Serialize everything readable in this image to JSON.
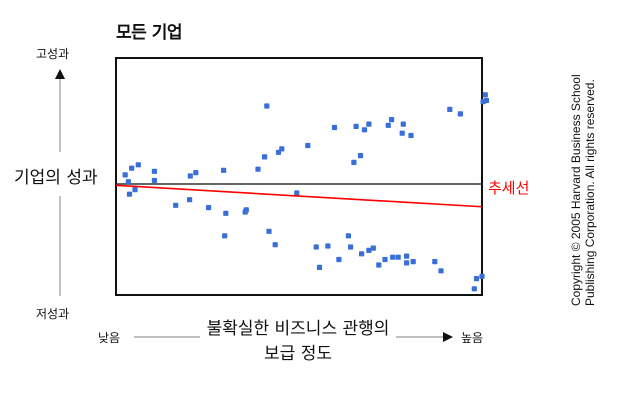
{
  "chart_data": {
    "type": "scatter",
    "title": "모든 기업",
    "ylabel": "기업의 성과",
    "y_high_label": "고성과",
    "y_low_label": "저성과",
    "xlabel": "불확실한 비즈니스 관행의 보급 정도",
    "x_low_label": "낮음",
    "x_high_label": "높음",
    "trend_label": "추세선",
    "xlim": [
      0,
      100
    ],
    "ylim": [
      0,
      100
    ],
    "baseline_y": 46.2,
    "trendline": [
      [
        0,
        45.6
      ],
      [
        100,
        35.5
      ]
    ],
    "points": [
      {
        "x": 2.5,
        "y": 50.5
      },
      {
        "x": 3.4,
        "y": 47.3
      },
      {
        "x": 3.7,
        "y": 41.4
      },
      {
        "x": 4.3,
        "y": 53.7
      },
      {
        "x": 5.2,
        "y": 43.6
      },
      {
        "x": 6.1,
        "y": 55.3
      },
      {
        "x": 10.5,
        "y": 52.2
      },
      {
        "x": 10.5,
        "y": 47.9
      },
      {
        "x": 16.3,
        "y": 36.2
      },
      {
        "x": 20.1,
        "y": 38.8
      },
      {
        "x": 20.3,
        "y": 50.0
      },
      {
        "x": 21.8,
        "y": 51.6
      },
      {
        "x": 25.3,
        "y": 35.1
      },
      {
        "x": 29.4,
        "y": 52.7
      },
      {
        "x": 29.7,
        "y": 21.8
      },
      {
        "x": 30.0,
        "y": 32.4
      },
      {
        "x": 35.3,
        "y": 33.0
      },
      {
        "x": 35.6,
        "y": 34.0
      },
      {
        "x": 38.8,
        "y": 53.2
      },
      {
        "x": 40.6,
        "y": 59.0
      },
      {
        "x": 41.2,
        "y": 83.0
      },
      {
        "x": 41.8,
        "y": 23.9
      },
      {
        "x": 43.5,
        "y": 17.6
      },
      {
        "x": 44.4,
        "y": 61.2
      },
      {
        "x": 45.3,
        "y": 62.8
      },
      {
        "x": 49.4,
        "y": 42.0
      },
      {
        "x": 52.4,
        "y": 64.4
      },
      {
        "x": 54.7,
        "y": 16.5
      },
      {
        "x": 55.6,
        "y": 6.9
      },
      {
        "x": 57.9,
        "y": 17.0
      },
      {
        "x": 59.7,
        "y": 72.9
      },
      {
        "x": 60.9,
        "y": 10.6
      },
      {
        "x": 63.5,
        "y": 21.8
      },
      {
        "x": 64.1,
        "y": 16.5
      },
      {
        "x": 65.0,
        "y": 56.4
      },
      {
        "x": 65.6,
        "y": 73.4
      },
      {
        "x": 66.8,
        "y": 59.6
      },
      {
        "x": 67.1,
        "y": 13.3
      },
      {
        "x": 67.9,
        "y": 71.8
      },
      {
        "x": 69.1,
        "y": 74.5
      },
      {
        "x": 69.1,
        "y": 14.9
      },
      {
        "x": 70.3,
        "y": 16.0
      },
      {
        "x": 71.8,
        "y": 8.0
      },
      {
        "x": 73.5,
        "y": 10.6
      },
      {
        "x": 74.4,
        "y": 73.9
      },
      {
        "x": 75.3,
        "y": 76.6
      },
      {
        "x": 75.6,
        "y": 11.7
      },
      {
        "x": 77.1,
        "y": 11.7
      },
      {
        "x": 78.2,
        "y": 70.2
      },
      {
        "x": 78.5,
        "y": 74.5
      },
      {
        "x": 79.4,
        "y": 12.2
      },
      {
        "x": 79.4,
        "y": 9.0
      },
      {
        "x": 80.6,
        "y": 69.1
      },
      {
        "x": 81.2,
        "y": 9.6
      },
      {
        "x": 87.1,
        "y": 9.6
      },
      {
        "x": 88.8,
        "y": 5.3
      },
      {
        "x": 91.2,
        "y": 81.4
      },
      {
        "x": 94.1,
        "y": 79.3
      },
      {
        "x": 97.9,
        "y": -3.2
      },
      {
        "x": 98.5,
        "y": 1.6
      },
      {
        "x": 100.0,
        "y": 2.7
      },
      {
        "x": 100.3,
        "y": 85.1
      },
      {
        "x": 100.9,
        "y": 88.3
      },
      {
        "x": 101.2,
        "y": 85.6
      }
    ],
    "grid": false,
    "legend": "none",
    "colors": {
      "points": "#3a6fd8",
      "trendline": "#ff0000",
      "baseline": "#333333",
      "frame": "#111111"
    }
  },
  "copyright": {
    "line1": "Copyright © 2005 Harvard Business School",
    "line2": "Publishing Corporation. All rights reserved."
  }
}
